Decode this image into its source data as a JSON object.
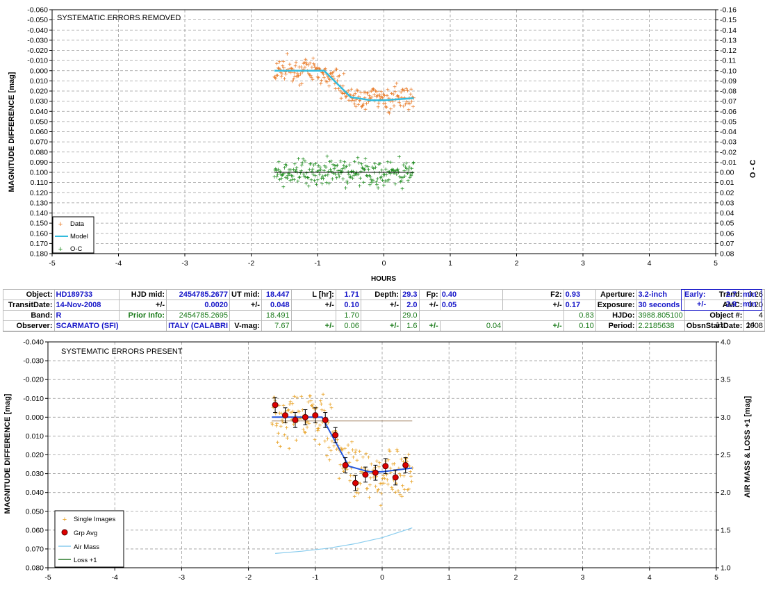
{
  "chart_data": [
    {
      "type": "scatter",
      "title": "SYSTEMATIC ERRORS REMOVED",
      "xlabel": "HOURS",
      "ylabel": "MAGNITUDE DIFFERENCE [mag]",
      "y2label": "O - C",
      "xlim": [
        -5,
        5
      ],
      "ylim": [
        0.18,
        -0.06
      ],
      "y2lim": [
        0.08,
        -0.16
      ],
      "x_ticks": [
        -5,
        -4,
        -3,
        -2,
        -1,
        0,
        1,
        2,
        3,
        4,
        5
      ],
      "y_ticks": [
        "-0.060",
        "-0.050",
        "-0.040",
        "-0.030",
        "-0.020",
        "-0.010",
        "0.000",
        "0.010",
        "0.020",
        "0.030",
        "0.040",
        "0.050",
        "0.060",
        "0.070",
        "0.080",
        "0.090",
        "0.100",
        "0.110",
        "0.120",
        "0.130",
        "0.140",
        "0.150",
        "0.160",
        "0.170",
        "0.180"
      ],
      "y2_ticks": [
        "-0.16",
        "-0.15",
        "-0.14",
        "-0.13",
        "-0.12",
        "-0.11",
        "-0.10",
        "-0.09",
        "-0.08",
        "-0.07",
        "-0.06",
        "-0.05",
        "-0.04",
        "-0.03",
        "-0.02",
        "-0.01",
        "0.00",
        "0.01",
        "0.02",
        "0.03",
        "0.04",
        "0.05",
        "0.06",
        "0.07",
        "0.08"
      ],
      "grid": true,
      "legend": "bottom-left",
      "legend_entries": [
        "Data",
        "Model",
        "O-C"
      ],
      "model": {
        "x": [
          -1.65,
          -0.9,
          -0.5,
          -0.2,
          0.0,
          0.45
        ],
        "y": [
          0.0,
          0.0,
          0.026,
          0.029,
          0.029,
          0.027
        ]
      },
      "data_summary": {
        "x_range": [
          -1.65,
          0.45
        ],
        "y_range": [
          -0.05,
          0.06
        ]
      },
      "oc_summary": {
        "x_range": [
          -1.65,
          0.45
        ],
        "y_range": [
          0.06,
          0.14
        ],
        "baseline": 0.1
      },
      "colors": {
        "data": "#e87722",
        "model": "#33bbdd",
        "oc": "#1a8a1a"
      }
    },
    {
      "type": "scatter",
      "title": "SYSTEMATIC ERRORS PRESENT",
      "xlabel": "",
      "ylabel": "MAGNITUDE DIFFERENCE [mag]",
      "y2label": "AIR MASS & LOSS +1 [mag]",
      "xlim": [
        -5,
        5
      ],
      "ylim": [
        0.08,
        -0.04
      ],
      "y2lim": [
        1.0,
        4.0
      ],
      "x_ticks": [
        -5,
        -4,
        -3,
        -2,
        -1,
        0,
        1,
        2,
        3,
        4,
        5
      ],
      "y_ticks": [
        "-0.040",
        "-0.030",
        "-0.020",
        "-0.010",
        "0.000",
        "0.010",
        "0.020",
        "0.030",
        "0.040",
        "0.050",
        "0.060",
        "0.070",
        "0.080"
      ],
      "y2_ticks": [
        "4.0",
        "3.5",
        "3.0",
        "2.5",
        "2.0",
        "1.5",
        "1.0"
      ],
      "grid": true,
      "legend": "bottom-left",
      "legend_entries": [
        "Single Images",
        "Grp Avg",
        "Air Mass",
        "Loss +1"
      ],
      "grp_avg": {
        "x": [
          -1.6,
          -1.45,
          -1.3,
          -1.15,
          -1.0,
          -0.85,
          -0.7,
          -0.55,
          -0.4,
          -0.25,
          -0.1,
          0.05,
          0.2,
          0.35
        ],
        "y": [
          -0.0065,
          -0.001,
          0.0015,
          0.0,
          -0.001,
          0.0015,
          0.0095,
          0.0255,
          0.035,
          0.0305,
          0.0295,
          0.026,
          0.032,
          0.0255
        ],
        "err": [
          0.004,
          0.004,
          0.004,
          0.004,
          0.004,
          0.004,
          0.004,
          0.004,
          0.004,
          0.004,
          0.004,
          0.004,
          0.004,
          0.004
        ]
      },
      "model": {
        "x": [
          -1.65,
          -0.9,
          -0.5,
          -0.2,
          0.0,
          0.45
        ],
        "y": [
          0.0,
          0.0,
          0.026,
          0.029,
          0.029,
          0.027
        ]
      },
      "air_mass": {
        "x": [
          -1.6,
          -1.2,
          -0.8,
          -0.4,
          0.0,
          0.45
        ],
        "y2": [
          1.19,
          1.22,
          1.26,
          1.32,
          1.4,
          1.53
        ]
      },
      "loss_plus_1": {
        "x": [
          -1.65,
          0.45
        ],
        "y2": [
          2.95,
          2.95
        ]
      },
      "single_images_summary": {
        "x_range": [
          -1.65,
          0.45
        ],
        "y_range": [
          -0.04,
          0.08
        ]
      },
      "colors": {
        "single": "#e8a020",
        "grp": "#dd0000",
        "model": "#2255dd",
        "airmass": "#88ccee",
        "loss": "#2a7a2a"
      }
    }
  ],
  "info": {
    "object_label": "Object:",
    "object": "HD189733",
    "hjdmid_label": "HJD mid:",
    "hjdmid": "2454785.2677",
    "utmid_label": "UT mid:",
    "utmid": "18.447",
    "lhr_label": "L [hr]:",
    "lhr": "1.71",
    "depth_label": "Depth:",
    "depth": "29.3",
    "fp_label": "Fp:",
    "fp": "0.40",
    "f2_label": "F2:",
    "f2": "0.93",
    "aperture_label": "Aperture:",
    "aperture": "3.2-inch",
    "trend_label": "Trend:",
    "trend": "0.26",
    "early_label": "Early:",
    "early": "2.7",
    "early_unit": "min",
    "transitdate_label": "TransitDate:",
    "transitdate": "14-Nov-2008",
    "pm": "+/-",
    "hjdmid_err": "0.0020",
    "utmid_err": "0.048",
    "lhr_err": "0.10",
    "depth_err": "2.0",
    "fp_err": "0.05",
    "f2_err": "0.17",
    "exposure_label": "Exposure:",
    "exposure": "30 seconds",
    "amc_label": "AMC:",
    "amc": "0.20",
    "early_err": "2.9",
    "early_err_unit": "min",
    "band_label": "Band:",
    "band": "R",
    "prior_label": "Prior Info:",
    "prior_hjd": "2454785.2695",
    "prior_ut": "18.491",
    "prior_lhr": "1.70",
    "prior_depth": "29.0",
    "prior_f2": "0.83",
    "hjdo_label": "HJDo:",
    "hjdo": "3988.805100",
    "objnum_label": "Object #:",
    "objnum": "4",
    "observer_label": "Observer:",
    "observer": "SCARMATO (SFI)",
    "location": "ITALY (CALABRI",
    "vmag_label": "V-mag:",
    "vmag": "7.67",
    "vmag_depth_err": "0.06",
    "vmag_fp_err": "1.6",
    "vmag_f2_err": "0.04",
    "vmag_last_err": "0.10",
    "period_label": "Period:",
    "period": "2.2185638",
    "obsstart_label": "ObsnStartDate:",
    "obs_year": "2008",
    "obs_month": "11",
    "obs_day": "14"
  }
}
